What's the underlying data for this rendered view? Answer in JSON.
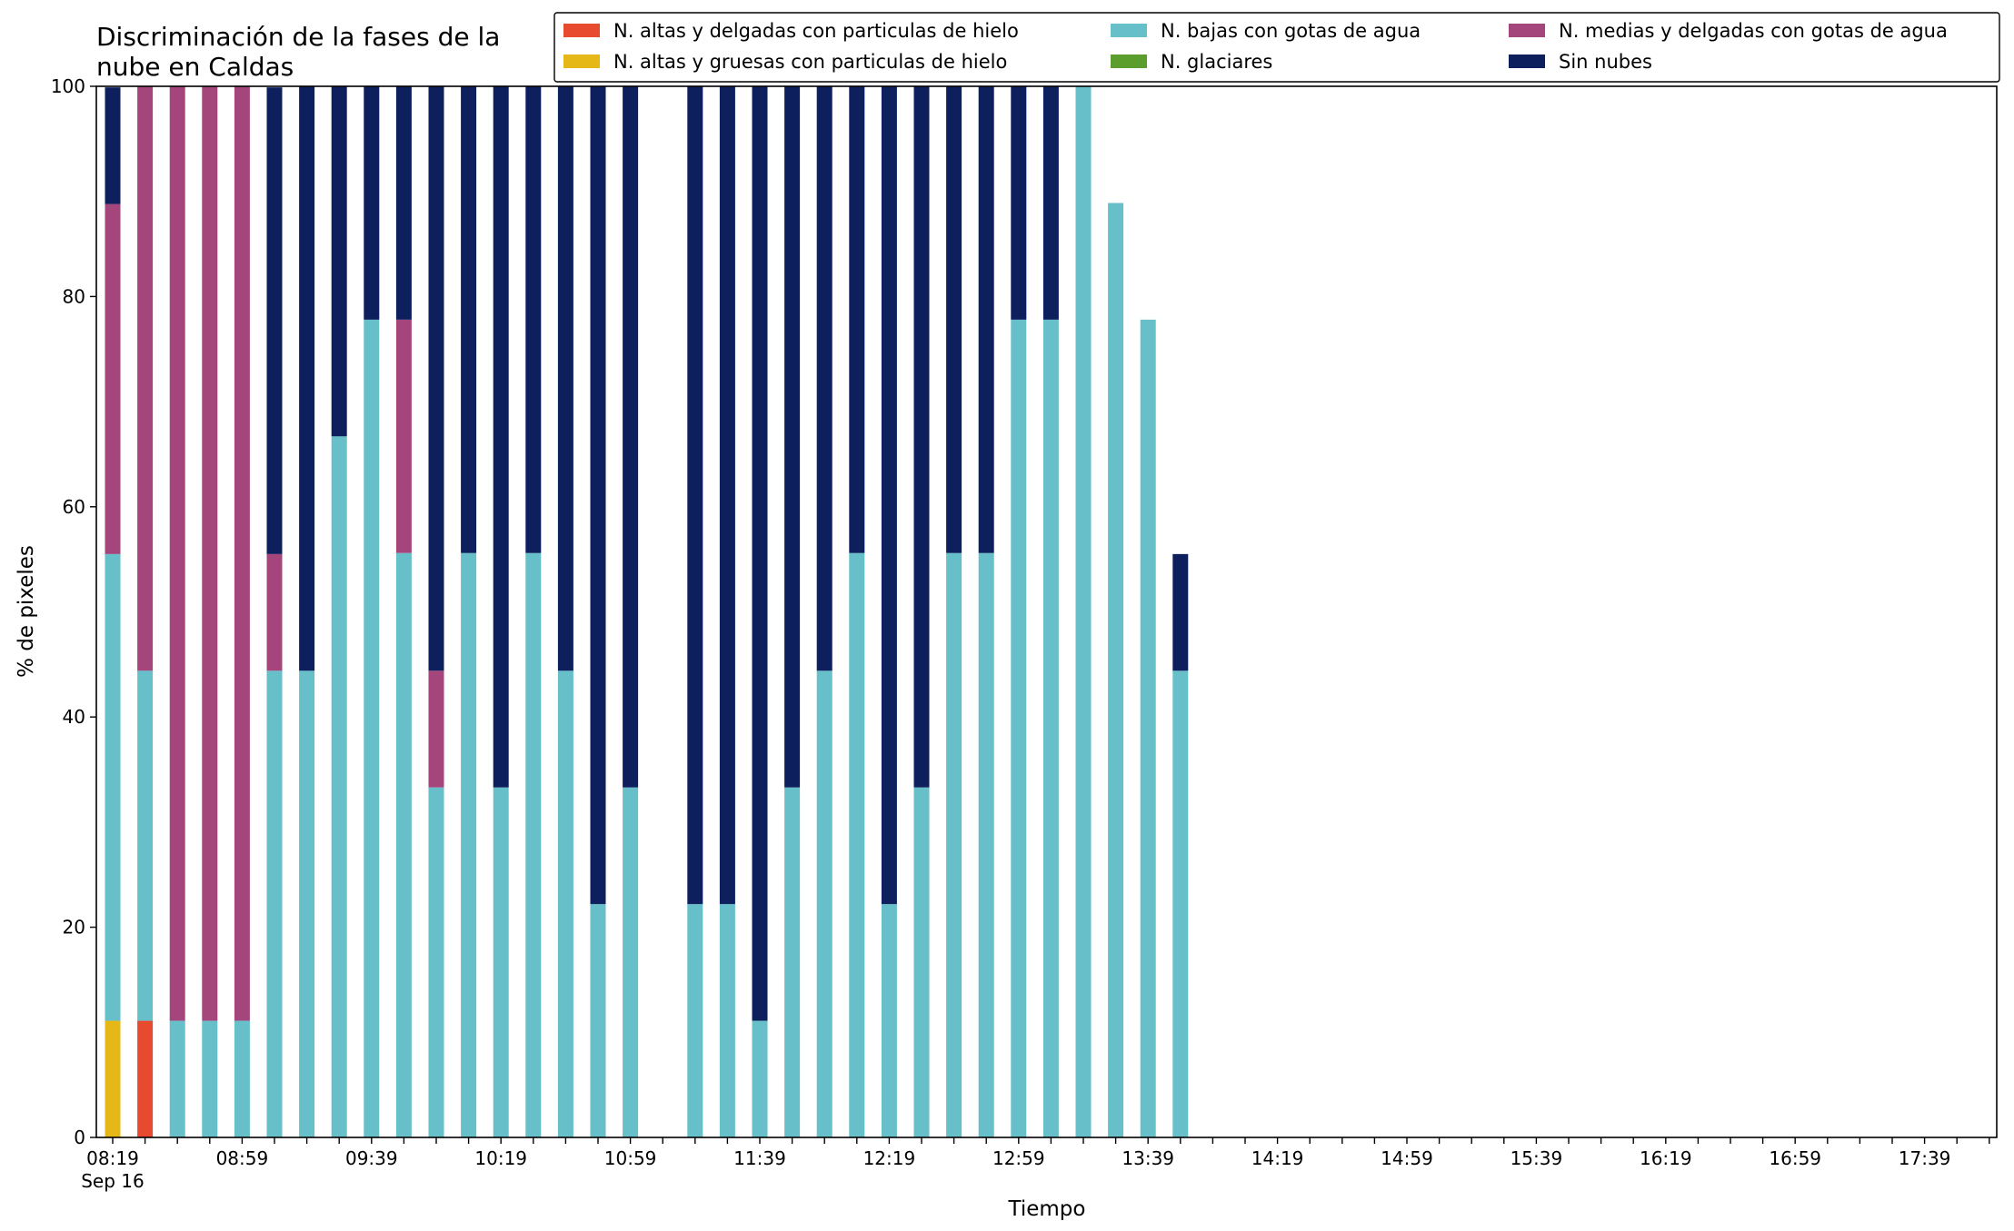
{
  "chart_data": {
    "type": "bar",
    "stacked": true,
    "title_lines": [
      "Discriminación de la fases de la",
      "nube en Caldas"
    ],
    "xlabel": "Tiempo",
    "ylabel": "% de pixeles",
    "ylim": [
      0,
      100
    ],
    "yticks": [
      "0",
      "20",
      "40",
      "60",
      "80",
      "100"
    ],
    "grid": false,
    "legend_position": "top-right",
    "x_start": "08:19",
    "x_interval_minutes": 10,
    "xtick_labels": [
      "08:19",
      "08:59",
      "09:39",
      "10:19",
      "10:59",
      "11:39",
      "12:19",
      "12:59",
      "13:39",
      "14:19",
      "14:59",
      "15:39",
      "16:19",
      "16:59",
      "17:39"
    ],
    "xtick_sublabel": "Sep 16",
    "series": [
      {
        "name": "N. altas y delgadas con particulas de hielo",
        "color": "#e84a2f",
        "values": [
          0,
          11.1,
          0,
          0,
          0,
          0,
          0,
          0,
          0,
          0,
          0,
          0,
          0,
          0,
          0,
          0,
          0,
          0,
          0,
          0,
          0,
          0,
          0,
          0,
          0,
          0,
          0,
          0,
          0,
          0,
          0,
          0,
          0,
          0,
          0,
          0,
          0,
          0,
          0,
          0,
          0,
          0,
          0,
          0,
          0,
          0,
          0,
          0,
          0,
          0,
          0,
          0,
          0,
          0,
          0,
          0,
          0,
          0,
          0,
          0,
          0,
          0
        ]
      },
      {
        "name": "N. altas y gruesas con particulas de hielo",
        "color": "#e6b817",
        "values": [
          11.1,
          0,
          0,
          0,
          0,
          0,
          0,
          0,
          0,
          0,
          0,
          0,
          0,
          0,
          0,
          0,
          0,
          0,
          0,
          0,
          0,
          0,
          0,
          0,
          0,
          0,
          0,
          0,
          0,
          0,
          0,
          0,
          0,
          0,
          0,
          0,
          0,
          0,
          0,
          0,
          0,
          0,
          0,
          0,
          0,
          0,
          0,
          0,
          0,
          0,
          0,
          0,
          0,
          0,
          0,
          0,
          0,
          0,
          0,
          0,
          0,
          0
        ]
      },
      {
        "name": "N. bajas con gotas de agua",
        "color": "#67bfca",
        "values": [
          44.4,
          33.3,
          11.1,
          11.1,
          11.1,
          44.4,
          44.4,
          66.7,
          77.8,
          55.6,
          33.3,
          55.6,
          33.3,
          55.6,
          44.4,
          22.2,
          33.3,
          0,
          22.2,
          22.2,
          11.1,
          33.3,
          44.4,
          55.6,
          22.2,
          33.3,
          55.6,
          55.6,
          77.8,
          77.8,
          100,
          88.9,
          77.8,
          44.4,
          0,
          0,
          0,
          0,
          0,
          0,
          0,
          0,
          0,
          0,
          0,
          0,
          0,
          0,
          0,
          0,
          0,
          0,
          0,
          0,
          0,
          0,
          0,
          0,
          0,
          0,
          0,
          0
        ]
      },
      {
        "name": "N. glaciares",
        "color": "#5c9e2d",
        "values": [
          0,
          0,
          0,
          0,
          0,
          0,
          0,
          0,
          0,
          0,
          0,
          0,
          0,
          0,
          0,
          0,
          0,
          0,
          0,
          0,
          0,
          0,
          0,
          0,
          0,
          0,
          0,
          0,
          0,
          0,
          0,
          0,
          0,
          0,
          0,
          0,
          0,
          0,
          0,
          0,
          0,
          0,
          0,
          0,
          0,
          0,
          0,
          0,
          0,
          0,
          0,
          0,
          0,
          0,
          0,
          0,
          0,
          0,
          0,
          0,
          0,
          0
        ]
      },
      {
        "name": "N. medias y delgadas con gotas de agua",
        "color": "#a4467c",
        "values": [
          33.3,
          55.6,
          88.9,
          88.9,
          88.9,
          11.1,
          0,
          0,
          0,
          22.2,
          11.1,
          0,
          0,
          0,
          0,
          0,
          0,
          0,
          0,
          0,
          0,
          0,
          0,
          0,
          0,
          0,
          0,
          0,
          0,
          0,
          0,
          0,
          0,
          0,
          0,
          0,
          0,
          0,
          0,
          0,
          0,
          0,
          0,
          0,
          0,
          0,
          0,
          0,
          0,
          0,
          0,
          0,
          0,
          0,
          0,
          0,
          0,
          0,
          0,
          0,
          0,
          0
        ]
      },
      {
        "name": "Sin nubes",
        "color": "#0d1f5c",
        "values": [
          11.1,
          0,
          0,
          0,
          0,
          44.4,
          55.6,
          33.3,
          22.2,
          22.2,
          55.6,
          44.4,
          66.7,
          44.4,
          55.6,
          77.8,
          66.7,
          0,
          77.8,
          77.8,
          88.9,
          66.7,
          55.6,
          44.4,
          77.8,
          66.7,
          44.4,
          44.4,
          22.2,
          22.2,
          0,
          0,
          0,
          11.1,
          0,
          0,
          0,
          0,
          0,
          0,
          0,
          0,
          0,
          0,
          0,
          0,
          0,
          0,
          0,
          0,
          0,
          0,
          0,
          0,
          0,
          0,
          0,
          0,
          0,
          0,
          0,
          0
        ]
      }
    ]
  }
}
